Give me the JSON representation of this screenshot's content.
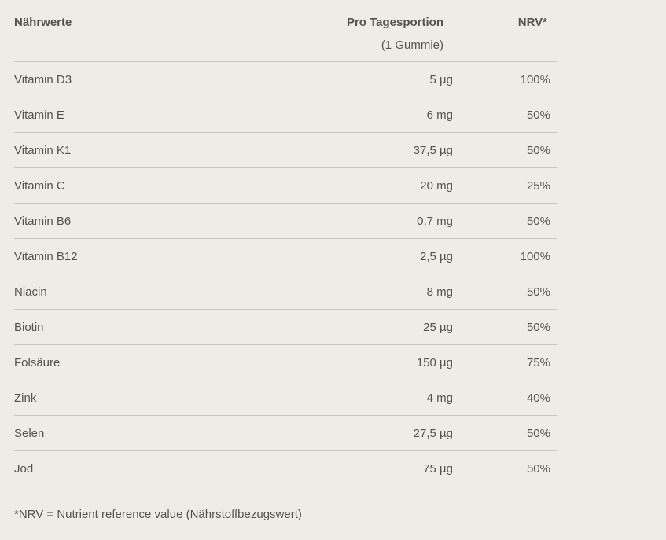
{
  "table": {
    "headers": {
      "nutrient": "Nährwerte",
      "portion": "Pro Tagesportion",
      "portion_sub": "(1 Gummie)",
      "nrv": "NRV*"
    },
    "rows": [
      {
        "name": "Vitamin D3",
        "amount": "5 µg",
        "nrv": "100%"
      },
      {
        "name": "Vitamin E",
        "amount": "6 mg",
        "nrv": "50%"
      },
      {
        "name": "Vitamin K1",
        "amount": "37,5 µg",
        "nrv": "50%"
      },
      {
        "name": "Vitamin C",
        "amount": "20 mg",
        "nrv": "25%"
      },
      {
        "name": "Vitamin B6",
        "amount": "0,7 mg",
        "nrv": "50%"
      },
      {
        "name": "Vitamin B12",
        "amount": "2,5 µg",
        "nrv": "100%"
      },
      {
        "name": "Niacin",
        "amount": "8 mg",
        "nrv": "50%"
      },
      {
        "name": "Biotin",
        "amount": "25 µg",
        "nrv": "50%"
      },
      {
        "name": "Folsäure",
        "amount": "150 µg",
        "nrv": "75%"
      },
      {
        "name": "Zink",
        "amount": "4 mg",
        "nrv": "40%"
      },
      {
        "name": "Selen",
        "amount": "27,5 µg",
        "nrv": "50%"
      },
      {
        "name": "Jod",
        "amount": "75 µg",
        "nrv": "50%"
      }
    ]
  },
  "footnote": "*NRV = Nutrient reference value (Nährstoffbezugswert)"
}
